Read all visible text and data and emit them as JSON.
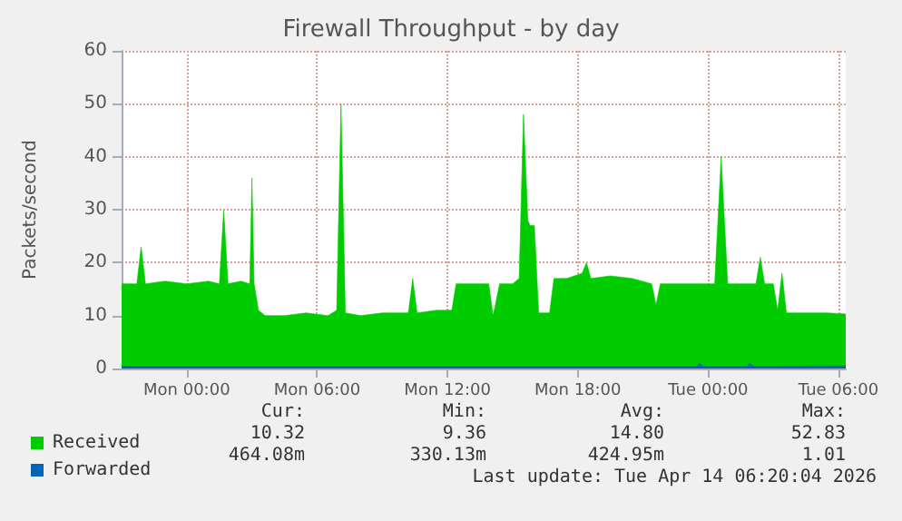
{
  "chart_data": {
    "type": "area",
    "title": "Firewall Throughput - by day",
    "ylabel": "Packets/second",
    "xlim": [
      "2026-04-12T21:00",
      "2026-04-14T06:20"
    ],
    "xticks": [
      {
        "value": "2026-04-13T00:00",
        "label": "Mon 00:00"
      },
      {
        "value": "2026-04-13T06:00",
        "label": "Mon 06:00"
      },
      {
        "value": "2026-04-13T12:00",
        "label": "Mon 12:00"
      },
      {
        "value": "2026-04-13T18:00",
        "label": "Mon 18:00"
      },
      {
        "value": "2026-04-14T00:00",
        "label": "Tue 00:00"
      },
      {
        "value": "2026-04-14T06:00",
        "label": "Tue 06:00"
      }
    ],
    "ylim": [
      0,
      60
    ],
    "yticks": [
      0,
      10,
      20,
      30,
      40,
      50,
      60
    ],
    "grid": true,
    "legend": "bottom left",
    "series": [
      {
        "name": "Received",
        "color": "#00cc00",
        "x": [
          "2026-04-12T21:00",
          "2026-04-12T21:42",
          "2026-04-12T21:54",
          "2026-04-12T22:06",
          "2026-04-12T23:00",
          "2026-04-13T00:00",
          "2026-04-13T01:00",
          "2026-04-13T01:30",
          "2026-04-13T01:42",
          "2026-04-13T01:54",
          "2026-04-13T02:30",
          "2026-04-13T02:54",
          "2026-04-13T03:00",
          "2026-04-13T03:06",
          "2026-04-13T03:18",
          "2026-04-13T03:36",
          "2026-04-13T04:30",
          "2026-04-13T05:30",
          "2026-04-13T06:30",
          "2026-04-13T06:54",
          "2026-04-13T07:06",
          "2026-04-13T07:18",
          "2026-04-13T08:00",
          "2026-04-13T09:00",
          "2026-04-13T10:12",
          "2026-04-13T10:24",
          "2026-04-13T10:36",
          "2026-04-13T11:30",
          "2026-04-13T12:12",
          "2026-04-13T12:24",
          "2026-04-13T13:00",
          "2026-04-13T13:54",
          "2026-04-13T14:06",
          "2026-04-13T14:24",
          "2026-04-13T15:00",
          "2026-04-13T15:18",
          "2026-04-13T15:30",
          "2026-04-13T15:42",
          "2026-04-13T15:48",
          "2026-04-13T16:00",
          "2026-04-13T16:12",
          "2026-04-13T16:42",
          "2026-04-13T16:54",
          "2026-04-13T17:30",
          "2026-04-13T18:12",
          "2026-04-13T18:24",
          "2026-04-13T18:36",
          "2026-04-13T19:30",
          "2026-04-13T20:30",
          "2026-04-13T21:24",
          "2026-04-13T21:36",
          "2026-04-13T21:48",
          "2026-04-13T22:30",
          "2026-04-13T23:30",
          "2026-04-14T00:18",
          "2026-04-14T00:36",
          "2026-04-14T00:54",
          "2026-04-14T01:30",
          "2026-04-14T02:12",
          "2026-04-14T02:24",
          "2026-04-14T02:36",
          "2026-04-14T03:00",
          "2026-04-14T03:12",
          "2026-04-14T03:24",
          "2026-04-14T03:36",
          "2026-04-14T04:30",
          "2026-04-14T05:30",
          "2026-04-14T06:20"
        ],
        "values": [
          16,
          16,
          23,
          16,
          16.5,
          16,
          16.5,
          16,
          30,
          16,
          16.5,
          16,
          36,
          16,
          11,
          10,
          10,
          10.5,
          10,
          11,
          50,
          10.5,
          10,
          10.5,
          10.5,
          17,
          10.5,
          11,
          11,
          16,
          16,
          16,
          10,
          16,
          16,
          17,
          48,
          28,
          27,
          27,
          10.5,
          10.5,
          17,
          17,
          18,
          20,
          17,
          17.5,
          17,
          16,
          12,
          16,
          16,
          16,
          16,
          40,
          16,
          16,
          16,
          21,
          16,
          16,
          11,
          18,
          10.5,
          10.5,
          10.5,
          10.3
        ]
      },
      {
        "name": "Forwarded",
        "color": "#0066b3",
        "x": [
          "2026-04-12T21:00",
          "2026-04-13T23:30",
          "2026-04-13T23:36",
          "2026-04-13T23:48",
          "2026-04-14T01:48",
          "2026-04-14T01:54",
          "2026-04-14T02:06",
          "2026-04-14T06:20"
        ],
        "values": [
          0.4,
          0.4,
          1,
          0.4,
          0.4,
          1,
          0.4,
          0.5
        ]
      }
    ],
    "annotations": [
      "Cur:",
      "Min:",
      "Avg:",
      "Max:",
      "10.32",
      "9.36",
      "14.80",
      "52.83",
      "464.08m",
      "330.13m",
      "424.95m",
      "1.01",
      "Last update: Tue Apr 14 06:20:04 2026"
    ]
  }
}
